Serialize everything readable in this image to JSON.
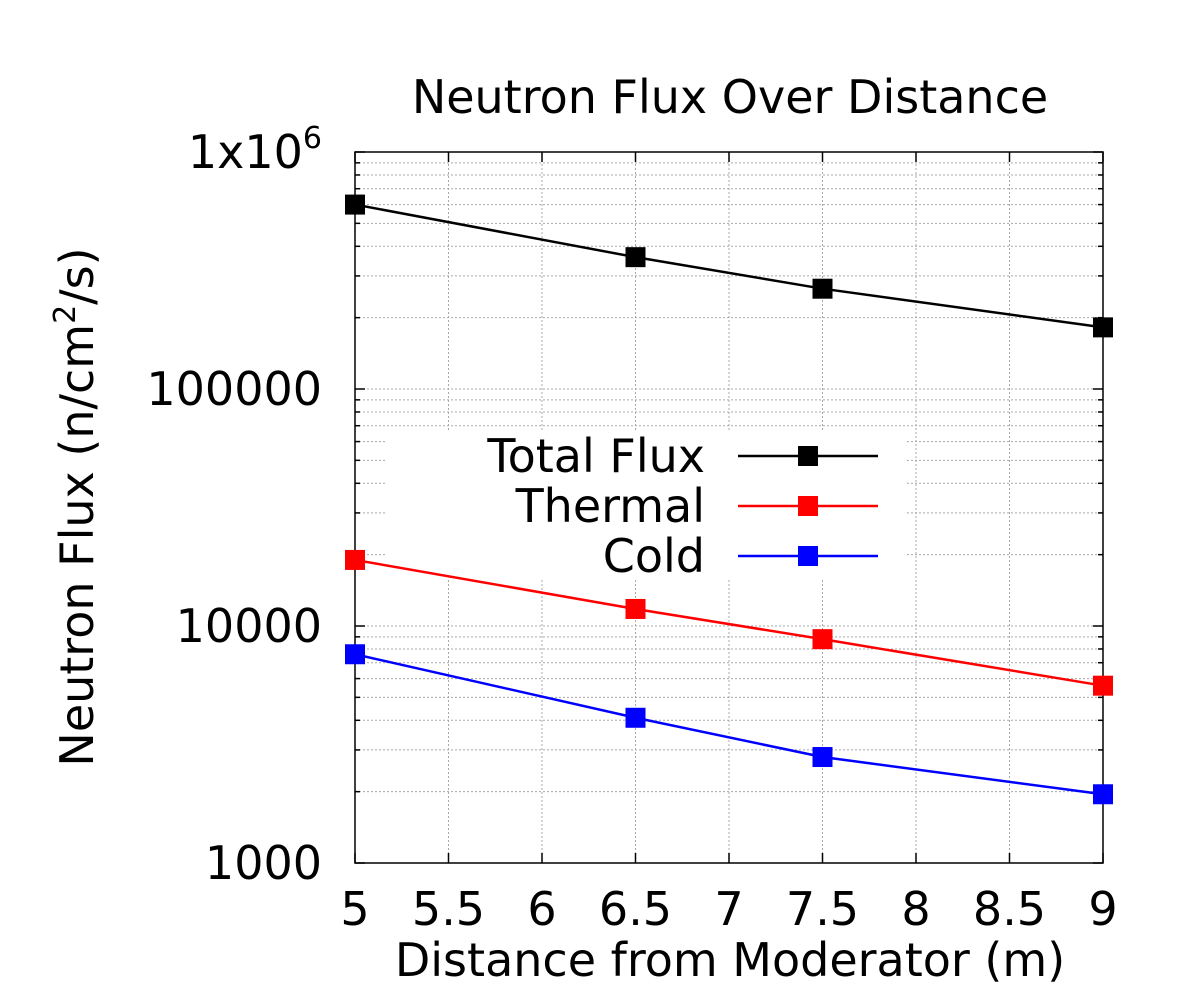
{
  "chart_data": {
    "type": "line",
    "title": "Neutron Flux Over Distance",
    "xlabel": "Distance from Moderator (m)",
    "ylabel_main": "Neutron Flux (n/cm",
    "ylabel_sup": "2",
    "ylabel_tail": "/s)",
    "x": [
      5,
      6.5,
      7.5,
      9
    ],
    "xlim": [
      5,
      9
    ],
    "ylim": [
      1000,
      1000000
    ],
    "y_scale": "log",
    "grid": true,
    "legend_position": "center-left",
    "x_ticks": [
      {
        "value": 5,
        "label": "5"
      },
      {
        "value": 5.5,
        "label": "5.5"
      },
      {
        "value": 6,
        "label": "6"
      },
      {
        "value": 6.5,
        "label": "6.5"
      },
      {
        "value": 7,
        "label": "7"
      },
      {
        "value": 7.5,
        "label": "7.5"
      },
      {
        "value": 8,
        "label": "8"
      },
      {
        "value": 8.5,
        "label": "8.5"
      },
      {
        "value": 9,
        "label": "9"
      }
    ],
    "y_ticks": [
      {
        "value": 1000,
        "label": "1000"
      },
      {
        "value": 10000,
        "label": "10000"
      },
      {
        "value": 100000,
        "label": "100000"
      },
      {
        "value": 1000000,
        "label": "1x10",
        "sup": "6"
      }
    ],
    "series": [
      {
        "name": "Total Flux",
        "color": "#000000",
        "values": [
          600000,
          360000,
          265000,
          182000
        ]
      },
      {
        "name": "Thermal",
        "color": "#ff0000",
        "values": [
          19000,
          11800,
          8800,
          5600
        ]
      },
      {
        "name": "Cold",
        "color": "#0000ff",
        "values": [
          7600,
          4100,
          2800,
          1950
        ]
      }
    ]
  }
}
